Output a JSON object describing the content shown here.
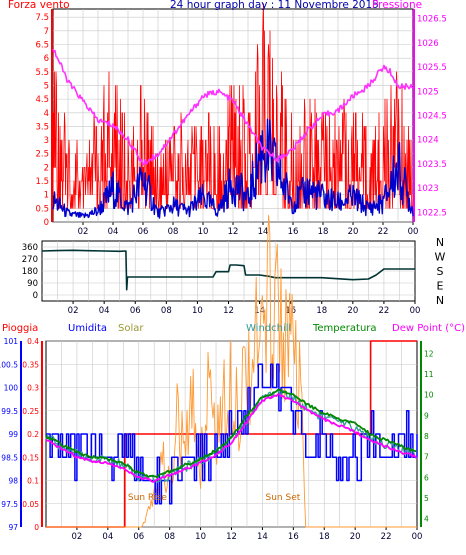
{
  "colors": {
    "wind_axis": "#ff0000",
    "pressure_axis": "#ff00ff",
    "title": "#0000aa",
    "frame": "#000000",
    "wind_gust": "#ff0000",
    "wind_avg": "#0000cc",
    "pressure": "#ff33ff",
    "direction": "#003333",
    "rain": "#ff0000",
    "humidity": "#0000ff",
    "solar": "#ff9933",
    "windchill": "#339999",
    "temperature": "#008800",
    "dewpoint": "#ff00ff",
    "event": "#cc6600",
    "grid": "#c8c8c8"
  },
  "chart_data": [
    {
      "type": "line",
      "title": "24 hour graph day : 11 Novembre 2015",
      "left_axis_label": "Forza vento",
      "right_axis_label": "Pressione",
      "left_ticks": [
        "0",
        "0.5",
        "1",
        "1.5",
        "2",
        "2.5",
        "3",
        "3.5",
        "4",
        "4.5",
        "5",
        "5.5",
        "6",
        "6.5",
        "7",
        "7.5"
      ],
      "right_ticks": [
        "1022.5",
        "1023",
        "1023.5",
        "1024",
        "1024.5",
        "1025",
        "1025.5",
        "1026",
        "1026.5"
      ],
      "x_ticks": [
        "02",
        "04",
        "06",
        "08",
        "10",
        "12",
        "14",
        "16",
        "18",
        "20",
        "22",
        "00"
      ],
      "xlim": [
        0,
        24
      ],
      "ylim_left": [
        0,
        7.8
      ],
      "ylim_right": [
        1022.3,
        1026.7
      ],
      "pressure": {
        "x": [
          0,
          1,
          2,
          3,
          4,
          5,
          6,
          7,
          8,
          9,
          10,
          11,
          12,
          13,
          14,
          15,
          16,
          17,
          18,
          19,
          20,
          21,
          22,
          22.5,
          23,
          24
        ],
        "y": [
          1025.9,
          1025.2,
          1024.8,
          1024.4,
          1024.3,
          1024.0,
          1023.5,
          1023.7,
          1024.1,
          1024.5,
          1024.9,
          1025.0,
          1024.8,
          1024.3,
          1023.8,
          1023.6,
          1023.8,
          1024.2,
          1024.5,
          1024.6,
          1024.9,
          1025.1,
          1025.5,
          1025.4,
          1025.1,
          1025.1
        ]
      },
      "wind_avg": {
        "x": [
          0,
          1,
          2,
          3,
          4,
          5,
          6,
          7,
          8,
          9,
          10,
          11,
          12,
          13,
          14,
          15,
          16,
          17,
          18,
          19,
          20,
          21,
          22,
          23,
          24
        ],
        "y": [
          0.8,
          0.3,
          0.2,
          0.4,
          1.2,
          0.5,
          1.6,
          0.3,
          0.6,
          0.4,
          0.9,
          0.4,
          1.5,
          0.8,
          2.8,
          1.8,
          0.7,
          1.2,
          0.9,
          0.7,
          0.9,
          0.5,
          0.7,
          2.0,
          0.4
        ]
      },
      "wind_gust": {
        "x": [
          0,
          1,
          2,
          3,
          4,
          5,
          6,
          7,
          8,
          9,
          10,
          11,
          12,
          13,
          14,
          15,
          16,
          17,
          18,
          19,
          20,
          21,
          22,
          23,
          24
        ],
        "y": [
          5.5,
          3.0,
          2.5,
          4.0,
          5.5,
          3.5,
          5.5,
          2.0,
          4.0,
          3.0,
          4.5,
          3.0,
          5.5,
          4.0,
          7.5,
          5.5,
          3.5,
          4.5,
          4.0,
          3.5,
          4.5,
          3.0,
          4.0,
          5.5,
          2.5
        ]
      }
    },
    {
      "type": "line",
      "title": "",
      "left_ticks": [
        "0",
        "90",
        "180",
        "270",
        "360"
      ],
      "right_labels": [
        "N",
        "W",
        "S",
        "E",
        "N"
      ],
      "x_ticks": [
        "02",
        "04",
        "06",
        "08",
        "10",
        "12",
        "14",
        "16",
        "18",
        "20",
        "22",
        "00"
      ],
      "xlim": [
        0,
        24
      ],
      "ylim": [
        0,
        360
      ],
      "direction": {
        "x": [
          0,
          1,
          2,
          3,
          4,
          5,
          5.4,
          5.45,
          5.5,
          6,
          8,
          10,
          11,
          11.2,
          11.8,
          12,
          12.1,
          12.5,
          13,
          13.1,
          14,
          14.6,
          15,
          18,
          20,
          21,
          21.5,
          22,
          24
        ],
        "y": [
          330,
          333,
          335,
          332,
          330,
          328,
          330,
          40,
          135,
          135,
          135,
          135,
          135,
          175,
          175,
          175,
          225,
          225,
          220,
          150,
          150,
          140,
          130,
          130,
          115,
          120,
          150,
          195,
          195
        ]
      }
    },
    {
      "type": "line",
      "series_labels": {
        "rain": "Pioggia",
        "humidity": "Umidita",
        "solar": "Solar",
        "windchill": "Windchill",
        "temperature": "Temperatura",
        "dewpoint": "Dew Point (°C)"
      },
      "annotations": [
        "Sun Rise",
        "Sun Set"
      ],
      "rain_ticks": [
        "0",
        "0.05",
        "0.1",
        "0.15",
        "0.2",
        "0.25",
        "0.3",
        "0.35",
        "0.4"
      ],
      "humidity_ticks": [
        "97",
        "97.5",
        "98",
        "98.5",
        "99",
        "99.5",
        "100",
        "100.5",
        "101"
      ],
      "temp_ticks": [
        "4",
        "5",
        "6",
        "7",
        "8",
        "9",
        "10",
        "11",
        "12"
      ],
      "x_ticks": [
        "02",
        "04",
        "06",
        "08",
        "10",
        "12",
        "14",
        "16",
        "18",
        "20",
        "22",
        "00"
      ],
      "xlim": [
        0,
        24
      ],
      "ylim_rain": [
        0,
        0.4
      ],
      "ylim_humidity": [
        97,
        101
      ],
      "ylim_temp": [
        3.6,
        12.6
      ],
      "rain": {
        "x": [
          0,
          5.1,
          5.1,
          21,
          21,
          24
        ],
        "y": [
          0,
          0,
          0.2,
          0.2,
          0.4,
          0.4
        ]
      },
      "humidity": {
        "x": [
          0,
          1,
          2,
          3,
          4,
          5,
          6,
          7,
          8,
          9,
          10,
          11,
          12,
          13,
          14,
          15,
          16,
          17,
          18,
          19,
          20,
          21,
          22,
          23,
          24
        ],
        "y": [
          99,
          98.8,
          98.5,
          99,
          98.4,
          99,
          98.2,
          98.0,
          98.1,
          98.3,
          98.4,
          98.6,
          99.0,
          99.6,
          100.2,
          100.0,
          99.5,
          98.5,
          99.0,
          98.3,
          98.5,
          99.0,
          98.5,
          99.0,
          98.8
        ]
      },
      "solar": {
        "x": [
          0,
          6.2,
          6.5,
          7,
          7.5,
          8,
          8.5,
          9,
          9.5,
          10,
          10.5,
          11,
          11.5,
          12,
          12.5,
          13,
          13.5,
          14,
          14.5,
          15,
          15.5,
          16,
          16.5,
          16.8,
          24
        ],
        "y": [
          0,
          0,
          0.5,
          1.5,
          3.5,
          2.0,
          5.5,
          3.5,
          6.5,
          3.0,
          7.5,
          5.0,
          6.0,
          8.0,
          6.5,
          8.5,
          9.5,
          9.0,
          12.0,
          11.0,
          10.5,
          8.0,
          6.5,
          0,
          0
        ]
      },
      "windchill": {
        "x": [
          0,
          1,
          2,
          3,
          4,
          5,
          6,
          7,
          8,
          9,
          10,
          11,
          12,
          13,
          14,
          15,
          16,
          17,
          18,
          19,
          20,
          21,
          22,
          23,
          24
        ],
        "y": [
          8.0,
          7.5,
          7.1,
          6.9,
          6.8,
          6.6,
          6.0,
          5.8,
          6.1,
          6.5,
          6.8,
          7.2,
          7.8,
          8.8,
          9.8,
          10.2,
          9.8,
          9.3,
          8.9,
          8.6,
          8.4,
          7.9,
          7.6,
          7.3,
          7.1
        ]
      },
      "temperature": {
        "x": [
          0,
          1,
          2,
          3,
          4,
          5,
          6,
          7,
          8,
          9,
          10,
          11,
          12,
          13,
          14,
          15,
          16,
          17,
          18,
          19,
          20,
          21,
          22,
          23,
          24
        ],
        "y": [
          8.0,
          7.6,
          7.2,
          7.0,
          6.9,
          6.7,
          6.2,
          6.0,
          6.3,
          6.6,
          6.9,
          7.3,
          7.9,
          9.0,
          9.9,
          10.2,
          10.0,
          9.5,
          9.1,
          8.8,
          8.6,
          8.1,
          7.8,
          7.5,
          7.2
        ]
      },
      "dewpoint": {
        "x": [
          0,
          1,
          2,
          3,
          4,
          5,
          6,
          7,
          8,
          9,
          10,
          11,
          12,
          13,
          14,
          15,
          16,
          17,
          18,
          19,
          20,
          21,
          22,
          23,
          24
        ],
        "y": [
          7.8,
          7.4,
          7.0,
          6.8,
          6.7,
          6.4,
          6.0,
          5.8,
          6.1,
          6.4,
          6.7,
          7.1,
          7.7,
          8.7,
          9.7,
          10.0,
          9.7,
          9.2,
          8.8,
          8.5,
          8.2,
          7.8,
          7.5,
          7.2,
          7.0
        ]
      }
    }
  ]
}
